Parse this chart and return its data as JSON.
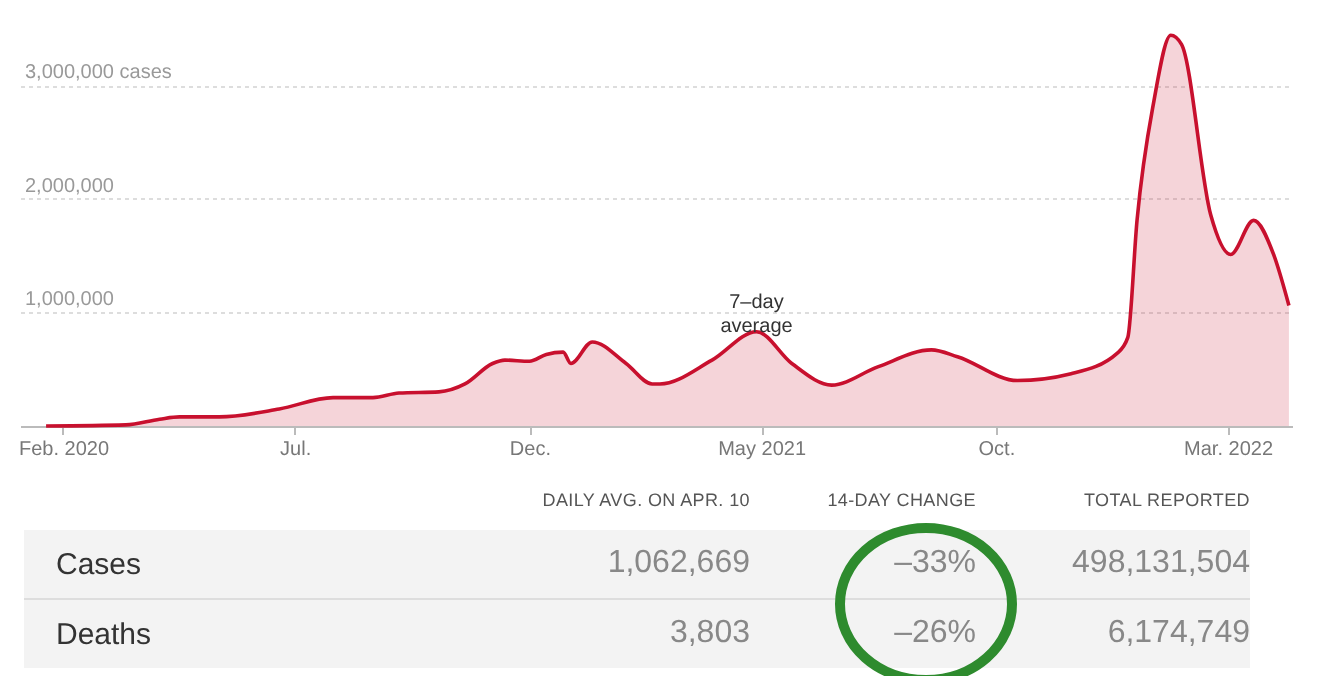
{
  "chart_data": {
    "type": "area",
    "x": [
      "2020-01-21",
      "2020-03-13",
      "2020-04-04",
      "2020-04-17",
      "2020-05-13",
      "2020-06-21",
      "2020-07-26",
      "2020-08-21",
      "2020-09-07",
      "2020-10-03",
      "2020-10-20",
      "2020-11-07",
      "2020-11-15",
      "2020-12-01",
      "2020-12-12",
      "2020-12-23",
      "2020-12-28",
      "2021-01-11",
      "2021-02-02",
      "2021-02-19",
      "2021-02-24",
      "2021-03-30",
      "2021-04-28",
      "2021-05-21",
      "2021-06-16",
      "2021-07-16",
      "2021-08-20",
      "2021-09-06",
      "2021-10-15",
      "2021-11-19",
      "2021-12-19",
      "2021-12-26",
      "2022-01-01",
      "2022-01-12",
      "2022-01-23",
      "2022-01-30",
      "2022-02-18",
      "2022-03-03",
      "2022-03-18",
      "2022-03-31",
      "2022-04-10"
    ],
    "series": [
      {
        "color": "#c8102e",
        "values": [
          0,
          10000,
          60000,
          80000,
          80000,
          150000,
          250000,
          250000,
          290000,
          300000,
          370000,
          550000,
          580000,
          570000,
          630000,
          650000,
          550000,
          740000,
          550000,
          370000,
          370000,
          580000,
          830000,
          550000,
          360000,
          520000,
          670000,
          610000,
          400000,
          460000,
          640000,
          780000,
          1810000,
          2860000,
          3440000,
          3360000,
          1860000,
          1510000,
          1810000,
          1510000,
          1060000
        ]
      }
    ],
    "xlim": [
      "2020-01-04",
      "2022-04-12"
    ],
    "xticks": [
      {
        "value": "2020-02-01",
        "label": "Feb. 2020"
      },
      {
        "value": "2020-07-01",
        "label": "Jul."
      },
      {
        "value": "2020-12-01",
        "label": "Dec."
      },
      {
        "value": "2021-05-01",
        "label": "May 2021"
      },
      {
        "value": "2021-10-01",
        "label": "Oct."
      },
      {
        "value": "2022-03-01",
        "label": "Mar. 2022"
      }
    ],
    "ylim": [
      0,
      3750000
    ],
    "yticks": [
      {
        "value": 1000000,
        "label": "1,000,000"
      },
      {
        "value": 2000000,
        "label": "2,000,000"
      },
      {
        "value": 3000000,
        "label": "3,000,000 cases"
      }
    ],
    "grid": "y",
    "annotations": [
      {
        "text": "7–day average",
        "x": "2021-04-28",
        "y": 830000
      },
      "DAILY AVG. ON APR. 10",
      "14-DAY CHANGE",
      "TOTAL REPORTED",
      "Cases",
      "1,062,669",
      "–33%",
      "498,131,504",
      "Deaths",
      "3,803",
      "–26%",
      "6,174,749"
    ]
  }
}
